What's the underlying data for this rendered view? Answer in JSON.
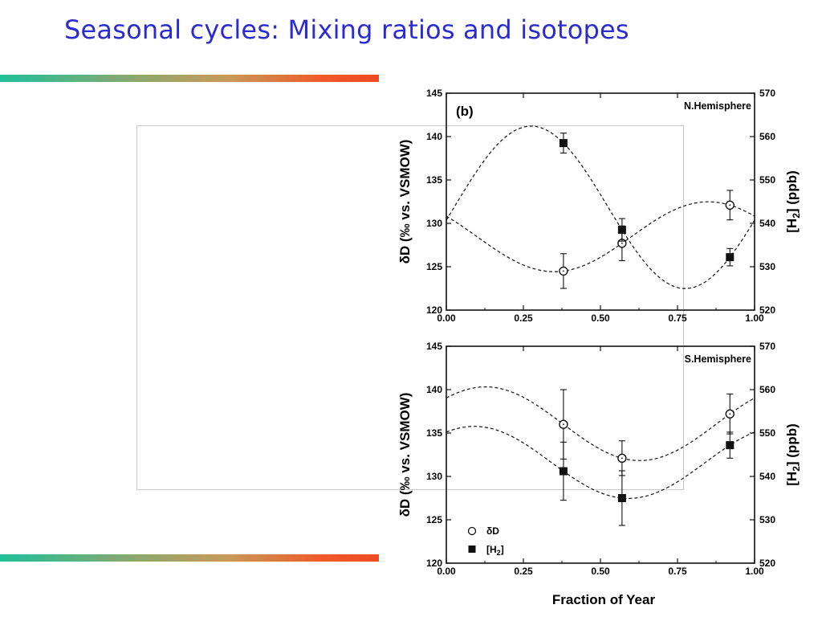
{
  "slide": {
    "title": "Seasonal cycles: Mixing ratios and isotopes"
  },
  "figure": {
    "panel_label": "(b)",
    "xlabel": "Fraction of Year",
    "left_ylabel": "δD (‰ vs. VSMOW)",
    "right_ylabel": "[H2] (ppb)",
    "legend": {
      "dD_label": "δD",
      "h2_label": "[H2]"
    }
  },
  "chart_data": [
    {
      "type": "scatter",
      "title": "N.Hemisphere",
      "xlabel": "",
      "ylabel": "δD (‰ vs. VSMOW)",
      "ylabel_right": "[H2] (ppb)",
      "xlim": [
        0.0,
        1.0
      ],
      "ylim": [
        120,
        145
      ],
      "ylim_right": [
        520,
        570
      ],
      "xticks": [
        "0.00",
        "0.25",
        "0.50",
        "0.75",
        "1.00"
      ],
      "yticks": [
        "120",
        "125",
        "130",
        "135",
        "140",
        "145"
      ],
      "yticks_right": [
        "520",
        "530",
        "540",
        "550",
        "560",
        "570"
      ],
      "grid": false,
      "series": [
        {
          "name": "δD",
          "marker": "open-circle",
          "axis": "left",
          "x": [
            0.38,
            0.57,
            0.92
          ],
          "y": [
            124.5,
            127.7,
            132.1
          ],
          "yerr": [
            2.0,
            2.0,
            1.7
          ]
        },
        {
          "name": "[H2]",
          "marker": "filled-square",
          "axis": "right",
          "x": [
            0.38,
            0.57,
            0.92
          ],
          "y": [
            558.5,
            538.5,
            532.2
          ],
          "yerr": [
            2.3,
            2.6,
            2.0
          ]
        }
      ]
    },
    {
      "type": "scatter",
      "title": "S.Hemisphere",
      "xlabel": "Fraction of Year",
      "ylabel": "δD (‰ vs. VSMOW)",
      "ylabel_right": "[H2] (ppb)",
      "xlim": [
        0.0,
        1.0
      ],
      "ylim": [
        120,
        145
      ],
      "ylim_right": [
        520,
        570
      ],
      "xticks": [
        "0.00",
        "0.25",
        "0.50",
        "0.75",
        "1.00"
      ],
      "yticks": [
        "120",
        "125",
        "130",
        "135",
        "140",
        "145"
      ],
      "yticks_right": [
        "520",
        "530",
        "540",
        "550",
        "560",
        "570"
      ],
      "grid": false,
      "legend_position": "bottom-left",
      "series": [
        {
          "name": "δD",
          "marker": "open-circle",
          "axis": "left",
          "x": [
            0.38,
            0.57,
            0.92
          ],
          "y": [
            136.0,
            132.1,
            137.2
          ],
          "yerr": [
            4.0,
            2.0,
            2.3
          ]
        },
        {
          "name": "[H2]",
          "marker": "filled-square",
          "axis": "right",
          "x": [
            0.38,
            0.57,
            0.92
          ],
          "y": [
            541.2,
            535.0,
            547.2
          ],
          "yerr": [
            6.7,
            6.3,
            3.0
          ]
        }
      ]
    }
  ]
}
